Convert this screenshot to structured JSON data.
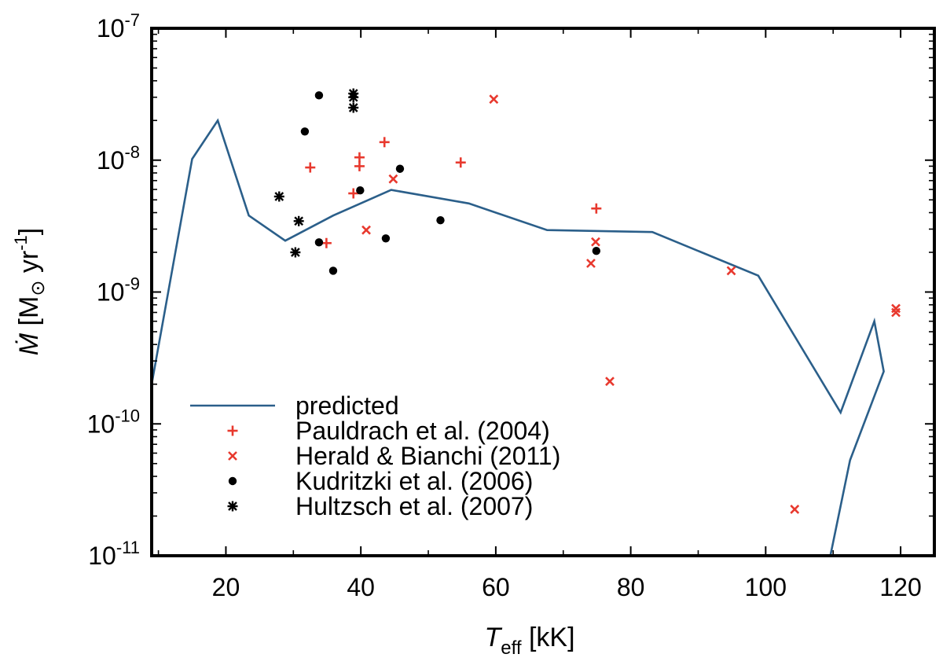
{
  "chart_data": {
    "type": "scatter",
    "title": "",
    "xlabel": {
      "main": "T",
      "sub": "eff",
      "unit": " [kK]"
    },
    "ylabel": {
      "main": "Ṁ",
      "unit_open": " [M",
      "sun_symbol": "⊙",
      "unit_mid": " yr",
      "unit_exp": "-1",
      "unit_close": "]"
    },
    "xlim": [
      9,
      125
    ],
    "ylim_log10": [
      -11,
      -7
    ],
    "y_scale": "log",
    "legend_position": "bottom-left",
    "xticks": [
      {
        "value": 20,
        "label": "20"
      },
      {
        "value": 40,
        "label": "40"
      },
      {
        "value": 60,
        "label": "60"
      },
      {
        "value": 80,
        "label": "80"
      },
      {
        "value": 100,
        "label": "100"
      },
      {
        "value": 120,
        "label": "120"
      }
    ],
    "yticks": [
      {
        "value": -11,
        "base": "10",
        "exp": "-11"
      },
      {
        "value": -10,
        "base": "10",
        "exp": "-10"
      },
      {
        "value": -9,
        "base": "10",
        "exp": "-9"
      },
      {
        "value": -8,
        "base": "10",
        "exp": "-8"
      },
      {
        "value": -7,
        "base": "10",
        "exp": "-7"
      }
    ],
    "series": [
      {
        "name": "predicted",
        "kind": "line",
        "color": "#2b5f8a",
        "points": [
          [
            9.0,
            2e-10
          ],
          [
            15.0,
            1.02e-08
          ],
          [
            18.8,
            2e-08
          ],
          [
            23.4,
            3.8e-09
          ],
          [
            28.8,
            2.45e-09
          ],
          [
            35.9,
            3.8e-09
          ],
          [
            44.5,
            5.95e-09
          ],
          [
            56.0,
            4.7e-09
          ],
          [
            67.6,
            2.95e-09
          ],
          [
            83.2,
            2.85e-09
          ],
          [
            98.9,
            1.33e-09
          ],
          [
            111.1,
            1.22e-10
          ],
          [
            116.1,
            6e-10
          ],
          [
            117.5,
            2.5e-10
          ],
          [
            112.5,
            5.3e-11
          ],
          [
            109.5,
            9.5e-12
          ]
        ]
      },
      {
        "name": "Pauldrach et al. (2004)",
        "kind": "marker",
        "marker": "plus",
        "color": "#e8392e",
        "points": [
          [
            32.5,
            8.8e-09
          ],
          [
            34.9,
            2.35e-09
          ],
          [
            38.9,
            5.6e-09
          ],
          [
            39.8,
            1.05e-08
          ],
          [
            39.8,
            9e-09
          ],
          [
            43.5,
            1.37e-08
          ],
          [
            54.8,
            9.6e-09
          ],
          [
            74.9,
            4.3e-09
          ]
        ]
      },
      {
        "name": "Herald & Bianchi (2011)",
        "kind": "marker",
        "marker": "cross",
        "color": "#e8392e",
        "points": [
          [
            40.8,
            2.95e-09
          ],
          [
            44.8,
            7.2e-09
          ],
          [
            59.7,
            2.9e-08
          ],
          [
            74.1,
            1.65e-09
          ],
          [
            74.8,
            2.4e-09
          ],
          [
            76.9,
            2.1e-10
          ],
          [
            94.9,
            1.45e-09
          ],
          [
            104.3,
            2.25e-11
          ],
          [
            119.3,
            7.5e-10
          ],
          [
            119.3,
            7e-10
          ]
        ]
      },
      {
        "name": "Kudritzki et al. (2006)",
        "kind": "marker",
        "marker": "dot",
        "color": "#000000",
        "points": [
          [
            31.7,
            1.65e-08
          ],
          [
            33.8,
            3.1e-08
          ],
          [
            33.8,
            2.38e-09
          ],
          [
            35.9,
            1.45e-09
          ],
          [
            39.9,
            5.9e-09
          ],
          [
            43.7,
            2.55e-09
          ],
          [
            45.8,
            8.6e-09
          ],
          [
            51.8,
            3.5e-09
          ],
          [
            74.9,
            2.05e-09
          ]
        ]
      },
      {
        "name": "Hultzsch et al. (2007)",
        "kind": "marker",
        "marker": "star",
        "color": "#000000",
        "points": [
          [
            27.9,
            5.3e-09
          ],
          [
            30.3,
            2e-09
          ],
          [
            30.8,
            3.45e-09
          ],
          [
            38.9,
            3.2e-08
          ],
          [
            38.9,
            3e-08
          ],
          [
            38.9,
            2.5e-08
          ]
        ]
      }
    ]
  }
}
